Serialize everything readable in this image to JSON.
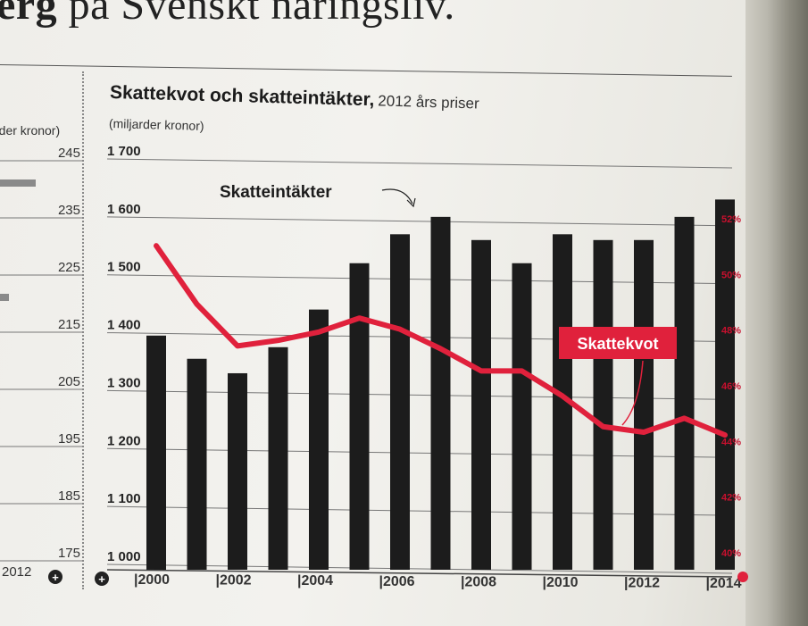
{
  "headline": {
    "bold": "erg",
    "rest": " på Svenskt näringsliv."
  },
  "left_panel": {
    "unit_label": "rder kronor)",
    "ticks": [
      "245",
      "235",
      "225",
      "215",
      "205",
      "195",
      "185",
      "175"
    ],
    "x_label": "2012"
  },
  "chart_data": {
    "type": "bar",
    "title": "Skattekvot och skatteintäkter,",
    "subtitle": "2012 års priser",
    "ylabel": "(miljarder kronor)",
    "ylim": [
      1000,
      1700
    ],
    "y_ticks": [
      "1 700",
      "1 600",
      "1 500",
      "1 400",
      "1 300",
      "1 200",
      "1 100",
      "1 000"
    ],
    "y2lim": [
      40,
      52
    ],
    "y2_ticks": [
      "52%",
      "50%",
      "48%",
      "46%",
      "44%",
      "42%",
      "40%"
    ],
    "x_tick_labels": [
      "2000",
      "2002",
      "2004",
      "2006",
      "2008",
      "2010",
      "2012",
      "2014"
    ],
    "categories": [
      "2000",
      "2001",
      "2002",
      "2003",
      "2004",
      "2005",
      "2006",
      "2007",
      "2008",
      "2009",
      "2010",
      "2011",
      "2012",
      "2013",
      "2014"
    ],
    "series": [
      {
        "name": "Skatteintäkter",
        "type": "bar",
        "color": "#1c1c1c",
        "values": [
          1395,
          1355,
          1330,
          1375,
          1440,
          1520,
          1570,
          1600,
          1560,
          1520,
          1570,
          1560,
          1560,
          1600,
          1630
        ]
      },
      {
        "name": "Skattekvot",
        "type": "line",
        "axis": "right",
        "color": "#e0213c",
        "values": [
          51.0,
          48.9,
          47.4,
          47.6,
          47.9,
          48.4,
          48.0,
          47.3,
          46.5,
          46.5,
          45.6,
          44.5,
          44.3,
          44.8,
          44.2
        ]
      }
    ],
    "annotations": [
      "Skatteintäkter",
      "Skattekvot"
    ],
    "grid": true
  }
}
